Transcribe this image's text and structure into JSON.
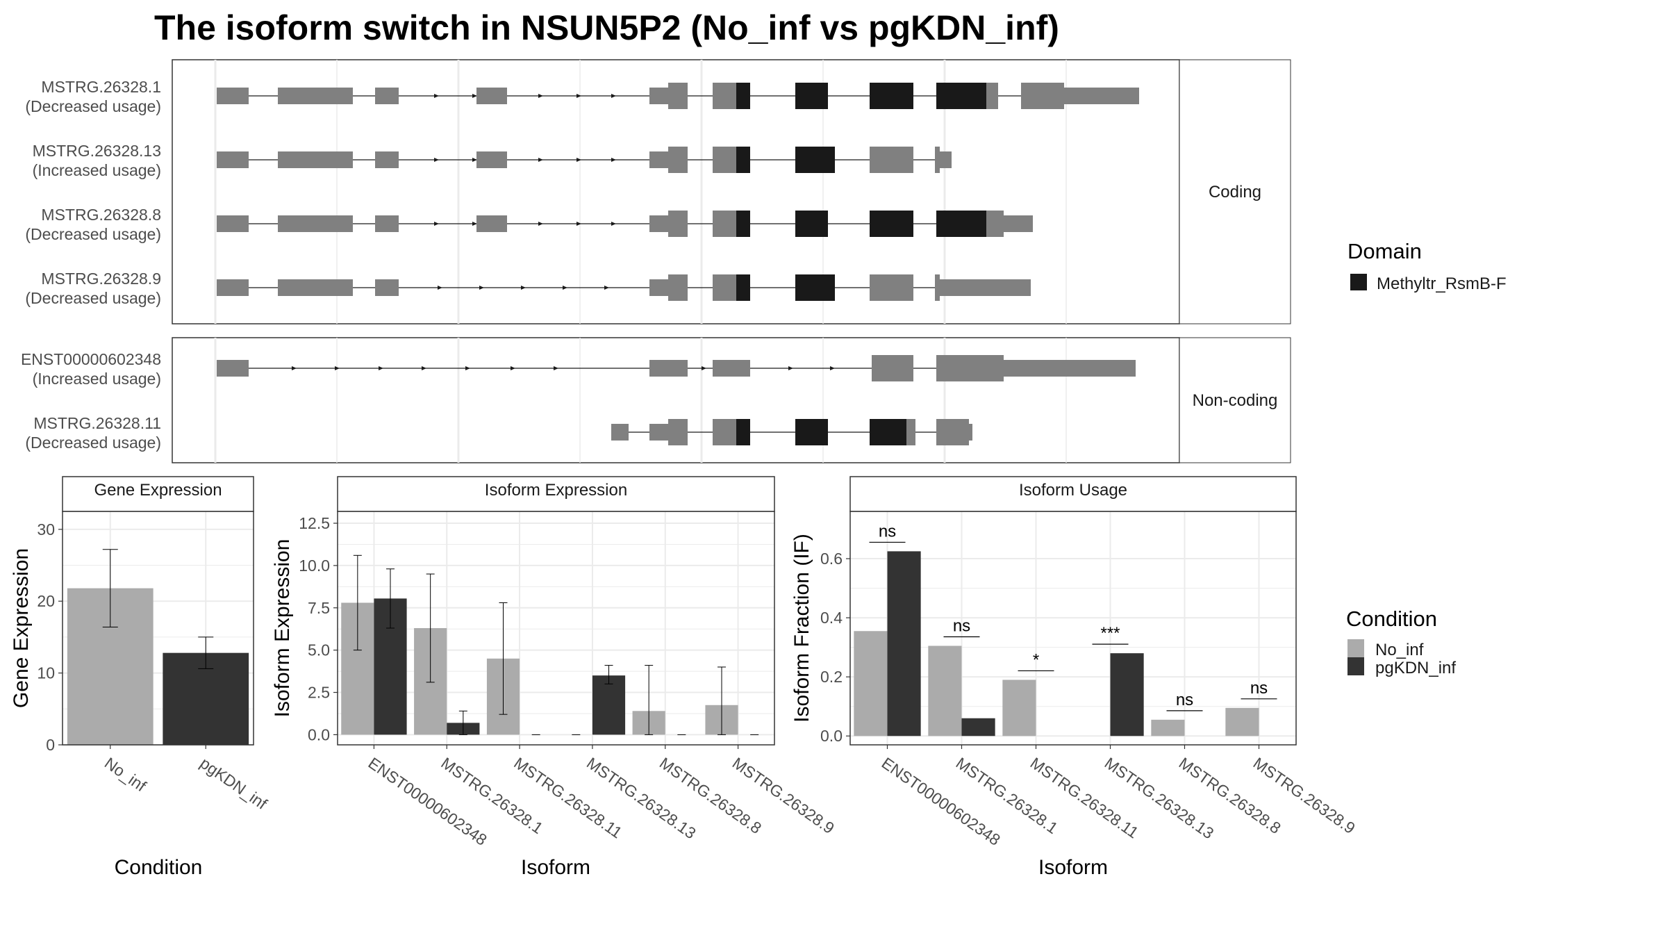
{
  "title": "The isoform switch in NSUN5P2 (No_inf vs pgKDN_inf)",
  "colors": {
    "exon": "#808080",
    "domain": "#191919",
    "no_inf": "#ababab",
    "pgkdn_inf": "#333333",
    "grid": "#ebebeb",
    "panel_border": "#333333",
    "strip": "#ffffff"
  },
  "structure": {
    "groups": [
      {
        "strip": "Coding",
        "isoforms": [
          {
            "name": "MSTRG.26328.1",
            "usage": "(Decreased usage)"
          },
          {
            "name": "MSTRG.26328.13",
            "usage": "(Increased usage)"
          },
          {
            "name": "MSTRG.26328.8",
            "usage": "(Decreased usage)"
          },
          {
            "name": "MSTRG.26328.9",
            "usage": "(Decreased usage)"
          }
        ]
      },
      {
        "strip": "Non-coding",
        "isoforms": [
          {
            "name": "ENST00000602348",
            "usage": "(Increased usage)"
          },
          {
            "name": "MSTRG.26328.11",
            "usage": "(Decreased usage)"
          }
        ]
      }
    ],
    "legend": {
      "title": "Domain",
      "items": [
        "Methyltr_RsmB-F"
      ]
    }
  },
  "chart_data": [
    {
      "type": "bar",
      "title": "Gene Expression",
      "xlabel": "Condition",
      "ylabel": "Gene Expression",
      "categories": [
        "No_inf",
        "pgKDN_inf"
      ],
      "values": [
        21.8,
        12.8
      ],
      "error_low": [
        16.4,
        10.6
      ],
      "error_high": [
        27.2,
        15.0
      ],
      "ylim": [
        0,
        32.5
      ],
      "yticks": [
        0,
        10,
        20,
        30
      ]
    },
    {
      "type": "bar",
      "title": "Isoform Expression",
      "xlabel": "Isoform",
      "ylabel": "Isoform Expression",
      "categories": [
        "ENST00000602348",
        "MSTRG.26328.1",
        "MSTRG.26328.11",
        "MSTRG.26328.13",
        "MSTRG.26328.8",
        "MSTRG.26328.9"
      ],
      "series": [
        {
          "name": "No_inf",
          "values": [
            7.8,
            6.3,
            4.5,
            0.0,
            1.4,
            1.75
          ],
          "error_low": [
            5.0,
            3.1,
            1.2,
            0.0,
            0.0,
            0.0
          ],
          "error_high": [
            10.6,
            9.5,
            7.8,
            0.0,
            4.1,
            4.0
          ]
        },
        {
          "name": "pgKDN_inf",
          "values": [
            8.05,
            0.7,
            0.0,
            3.5,
            0.0,
            0.0
          ],
          "error_low": [
            6.3,
            0.0,
            0.0,
            3.0,
            0.0,
            0.0
          ],
          "error_high": [
            9.8,
            1.4,
            0.0,
            4.1,
            0.0,
            0.0
          ]
        }
      ],
      "ylim": [
        -0.6,
        13.2
      ],
      "yticks": [
        "0.0",
        "2.5",
        "5.0",
        "7.5",
        "10.0",
        "12.5"
      ]
    },
    {
      "type": "bar",
      "title": "Isoform Usage",
      "xlabel": "Isoform",
      "ylabel": "Isoform Fraction (IF)",
      "categories": [
        "ENST00000602348",
        "MSTRG.26328.1",
        "MSTRG.26328.11",
        "MSTRG.26328.13",
        "MSTRG.26328.8",
        "MSTRG.26328.9"
      ],
      "series": [
        {
          "name": "No_inf",
          "values": [
            0.355,
            0.305,
            0.19,
            0.0,
            0.055,
            0.095
          ]
        },
        {
          "name": "pgKDN_inf",
          "values": [
            0.625,
            0.06,
            0.0,
            0.28,
            0.0,
            0.0
          ]
        }
      ],
      "significance": [
        "ns",
        "ns",
        "*",
        "***",
        "ns",
        "ns"
      ],
      "ylim": [
        -0.03,
        0.76
      ],
      "yticks": [
        "0.0",
        "0.2",
        "0.4",
        "0.6"
      ]
    }
  ],
  "condition_legend": {
    "title": "Condition",
    "items": [
      "No_inf",
      "pgKDN_inf"
    ]
  }
}
